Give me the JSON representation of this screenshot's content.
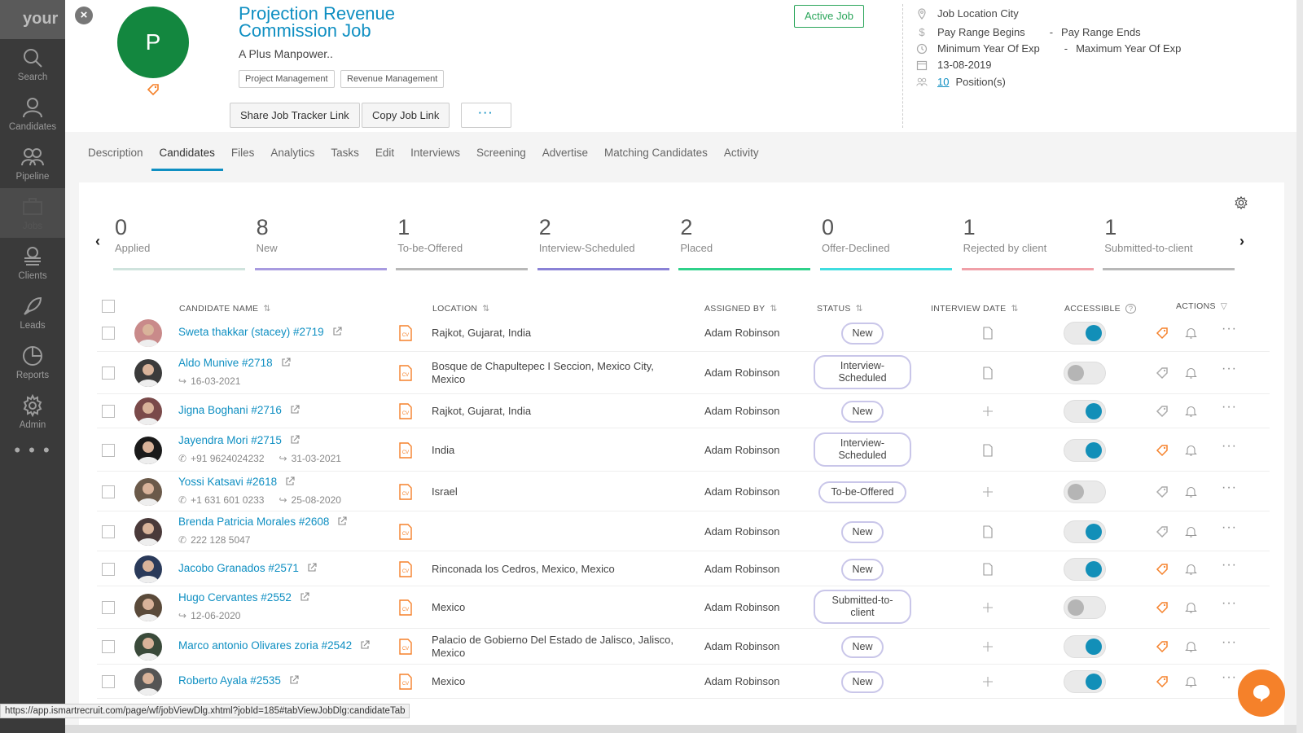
{
  "sidebar": {
    "logo_text": "your",
    "items": [
      {
        "label": "Search",
        "icon": "search-icon"
      },
      {
        "label": "Candidates",
        "icon": "person-icon"
      },
      {
        "label": "Pipeline",
        "icon": "people-icon"
      },
      {
        "label": "Jobs",
        "icon": "briefcase-icon"
      },
      {
        "label": "Clients",
        "icon": "clients-icon"
      },
      {
        "label": "Leads",
        "icon": "rocket-icon"
      },
      {
        "label": "Reports",
        "icon": "pie-chart-icon"
      },
      {
        "label": "Admin",
        "icon": "gear-icon"
      }
    ],
    "more": "• • •"
  },
  "job": {
    "avatar_letter": "P",
    "title": "Projection Revenue Commission Job",
    "company": "A Plus Manpower..",
    "tags": [
      "Project Management",
      "Revenue Management"
    ],
    "status_label": "Active Job",
    "buttons": {
      "share": "Share Job Tracker Link",
      "copy": "Copy Job Link",
      "more": "···"
    }
  },
  "job_info": {
    "location": "Job Location City",
    "pay_begins": "Pay Range Begins",
    "pay_ends": "Pay Range Ends",
    "min_exp": "Minimum Year Of Exp",
    "max_exp": "Maximum Year Of Exp",
    "date": "13-08-2019",
    "positions_count": "10",
    "positions_label": "Position(s)",
    "dash": "-"
  },
  "tabs": [
    "Description",
    "Candidates",
    "Files",
    "Analytics",
    "Tasks",
    "Edit",
    "Interviews",
    "Screening",
    "Advertise",
    "Matching Candidates",
    "Activity"
  ],
  "active_tab": "Candidates",
  "stages": [
    {
      "count": "0",
      "label": "Applied",
      "color": "#cfe3dd"
    },
    {
      "count": "8",
      "label": "New",
      "color": "#a89be0"
    },
    {
      "count": "1",
      "label": "To-be-Offered",
      "color": "#b8b8b8"
    },
    {
      "count": "2",
      "label": "Interview-Scheduled",
      "color": "#8a82d6"
    },
    {
      "count": "2",
      "label": "Placed",
      "color": "#2fd18a"
    },
    {
      "count": "0",
      "label": "Offer-Declined",
      "color": "#3fdde0"
    },
    {
      "count": "1",
      "label": "Rejected by client",
      "color": "#f0a0a8"
    },
    {
      "count": "1",
      "label": "Submitted-to-client",
      "color": "#b8b8b8"
    }
  ],
  "stage_nav": {
    "prev": "‹",
    "next": "›"
  },
  "table": {
    "headers": {
      "candidate_name": "CANDIDATE NAME",
      "location": "LOCATION",
      "assigned_by": "ASSIGNED BY",
      "status": "STATUS",
      "interview_date": "INTERVIEW DATE",
      "accessible": "ACCESSIBLE",
      "actions": "ACTIONS"
    },
    "rows": [
      {
        "name": "Sweta thakkar (stacey) #2719",
        "phone": "",
        "date": "",
        "location": "Rajkot, Gujarat, India",
        "assigned_by": "Adam Robinson",
        "status": "New",
        "interview": "doc",
        "accessible": true,
        "tag_active": true
      },
      {
        "name": "Aldo Munive #2718",
        "phone": "",
        "date": "16-03-2021",
        "location": "Bosque de Chapultepec I Seccion, Mexico City, Mexico",
        "assigned_by": "Adam Robinson",
        "status": "Interview-Scheduled",
        "interview": "doc",
        "accessible": false,
        "tag_active": false
      },
      {
        "name": "Jigna Boghani #2716",
        "phone": "",
        "date": "",
        "location": "Rajkot, Gujarat, India",
        "assigned_by": "Adam Robinson",
        "status": "New",
        "interview": "plus",
        "accessible": true,
        "tag_active": false
      },
      {
        "name": "Jayendra Mori #2715",
        "phone": "+91 9624024232",
        "date": "31-03-2021",
        "location": "India",
        "assigned_by": "Adam Robinson",
        "status": "Interview-Scheduled",
        "interview": "doc",
        "accessible": true,
        "tag_active": true
      },
      {
        "name": "Yossi Katsavi #2618",
        "phone": "+1 631 601 0233",
        "date": "25-08-2020",
        "location": "Israel",
        "assigned_by": "Adam Robinson",
        "status": "To-be-Offered",
        "interview": "plus",
        "accessible": false,
        "tag_active": false
      },
      {
        "name": "Brenda Patricia Morales #2608",
        "phone": "222 128 5047",
        "date": "",
        "location": "",
        "assigned_by": "Adam Robinson",
        "status": "New",
        "interview": "doc",
        "accessible": true,
        "tag_active": false
      },
      {
        "name": "Jacobo Granados #2571",
        "phone": "",
        "date": "",
        "location": "Rinconada los Cedros, Mexico, Mexico",
        "assigned_by": "Adam Robinson",
        "status": "New",
        "interview": "doc",
        "accessible": true,
        "tag_active": true
      },
      {
        "name": "Hugo Cervantes #2552",
        "phone": "",
        "date": "12-06-2020",
        "location": "Mexico",
        "assigned_by": "Adam Robinson",
        "status": "Submitted-to-client",
        "interview": "plus",
        "accessible": false,
        "tag_active": true
      },
      {
        "name": "Marco antonio Olivares zoria #2542",
        "phone": "",
        "date": "",
        "location": "Palacio de Gobierno Del Estado de Jalisco, Jalisco, Mexico",
        "assigned_by": "Adam Robinson",
        "status": "New",
        "interview": "plus",
        "accessible": true,
        "tag_active": true
      },
      {
        "name": "Roberto Ayala #2535",
        "phone": "",
        "date": "",
        "location": "Mexico",
        "assigned_by": "Adam Robinson",
        "status": "New",
        "interview": "plus",
        "accessible": true,
        "tag_active": true
      }
    ]
  },
  "statusbar_url": "https://app.ismartrecruit.com/page/wf/jobViewDlg.xhtml?jobId=185#tabViewJobDlg:candidateTab",
  "colors": {
    "accent": "#0f8fc2",
    "active_job": "#2aa55a",
    "avatar": "#13873f",
    "tag_orange": "#f5812a"
  }
}
